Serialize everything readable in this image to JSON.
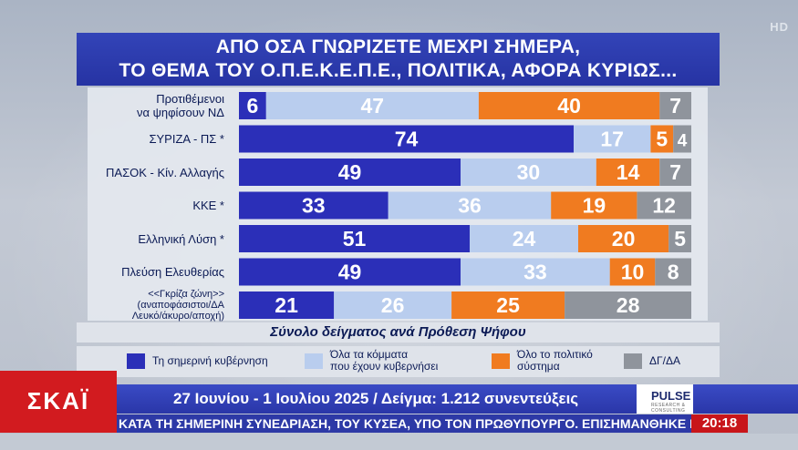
{
  "channel": {
    "hd_badge": "HD",
    "logo": "ΣΚΑΪ",
    "clock": "20:18"
  },
  "title": {
    "line1": "ΑΠΟ ΟΣΑ ΓΝΩΡΙΖΕΤΕ ΜΕΧΡΙ ΣΗΜΕΡΑ,",
    "line2": "ΤΟ ΘΕΜΑ ΤΟΥ Ο.Π.Ε.Κ.Ε.Π.Ε., ΠΟΛΙΤΙΚΑ, ΑΦΟΡΑ ΚΥΡΙΩΣ..."
  },
  "subtitle": "Σύνολο δείγματος ανά Πρόθεση Ψήφου",
  "info_line": "27 Ιουνίου - 1 Ιουλίου 2025 / Δείγμα: 1.212 συνεντεύξεις",
  "pollster": {
    "name": "PULSE",
    "tagline": "RESEARCH & CONSULTING"
  },
  "crawl": "ΚΑΤΑ ΤΗ ΣΗΜΕΡΙΝΗ ΣΥΝΕΔΡΙΑΣΗ, ΤΟΥ ΚΥΣΕΑ, ΥΠΟ ΤΟΝ ΠΡΩΘΥΠΟΥΡΓΟ. ΕΠΙΣΗΜΑΝΘΗΚΕ ΕΠ",
  "colors": {
    "government": "#2b2fb8",
    "all_parties": "#b9cdee",
    "political_system": "#f07b20",
    "dk_na": "#8f949c"
  },
  "chart_data": {
    "type": "bar",
    "orientation": "horizontal",
    "stacked": true,
    "categories": [
      [
        "Προτιθέμενοι",
        "να ψηφίσουν ΝΔ"
      ],
      [
        "ΣΥΡΙΖΑ - ΠΣ *"
      ],
      [
        "ΠΑΣΟΚ - Κίν. Αλλαγής"
      ],
      [
        "ΚΚΕ *"
      ],
      [
        "Ελληνική Λύση *"
      ],
      [
        "Πλεύση Ελευθερίας"
      ],
      [
        "<<Γκρίζα ζώνη>>",
        "(αναποφάσιστοι/ΔΑ",
        "Λευκό/άκυρο/αποχή)"
      ]
    ],
    "series": [
      {
        "name": "Τη σημερινή κυβέρνηση",
        "legend": [
          "Τη σημερινή κυβέρνηση"
        ],
        "values": [
          6,
          74,
          49,
          33,
          51,
          49,
          21
        ]
      },
      {
        "name": "Όλα τα κόμματα που έχουν κυβερνήσει",
        "legend": [
          "Όλα τα κόμματα",
          "που έχουν κυβερνήσει"
        ],
        "values": [
          47,
          17,
          30,
          36,
          24,
          33,
          26
        ]
      },
      {
        "name": "Όλο το πολιτικό σύστημα",
        "legend": [
          "Όλο το πολιτικό",
          "σύστημα"
        ],
        "values": [
          40,
          5,
          14,
          19,
          20,
          10,
          25
        ]
      },
      {
        "name": "ΔΓ/ΔΑ",
        "legend": [
          "ΔΓ/ΔΑ"
        ],
        "values": [
          7,
          4,
          7,
          12,
          5,
          8,
          28
        ]
      }
    ],
    "xlim": [
      0,
      100
    ],
    "legend_position": "bottom",
    "data_labels": true
  }
}
